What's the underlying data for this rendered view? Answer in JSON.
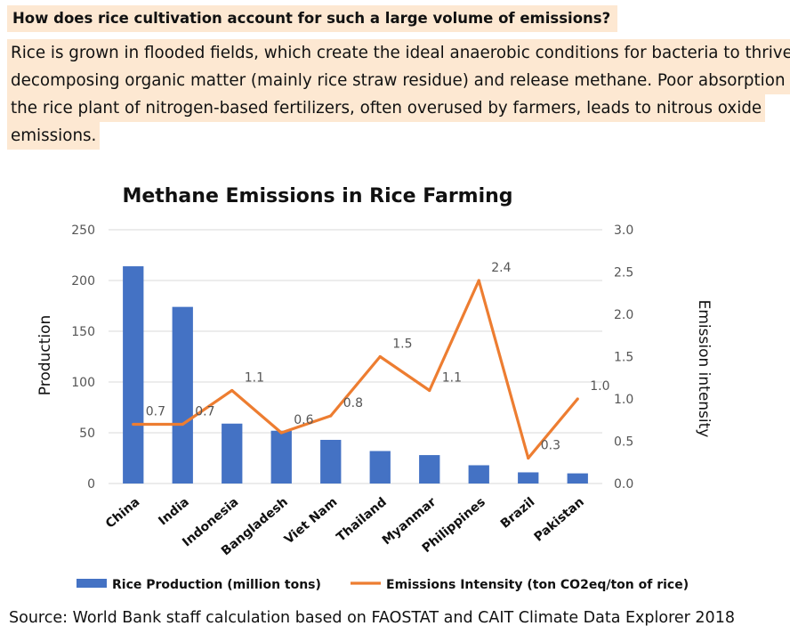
{
  "question": "How does rice cultivation account for such a large volume of emissions?",
  "answer_lines": [
    "Rice is grown in flooded fields, which create the ideal anaerobic conditions for bacteria to thrive on",
    "decomposing organic matter (mainly rice straw residue) and release methane. Poor absorption by",
    "the rice plant of nitrogen-based fertilizers, often overused by farmers, leads to nitrous oxide",
    "emissions."
  ],
  "source": "Source: World Bank staff calculation based on FAOSTAT and CAIT Climate Data Explorer 2018",
  "chart_data": {
    "type": "bar",
    "title": "Methane Emissions in Rice Farming",
    "ylabel": "Production",
    "y2label": "Emission intensity",
    "ylim": [
      0,
      250
    ],
    "y2lim": [
      0,
      3.0
    ],
    "yticks": [
      "0",
      "50",
      "100",
      "150",
      "200",
      "250"
    ],
    "y2ticks": [
      "0.0",
      "0.5",
      "1.0",
      "1.5",
      "2.0",
      "2.5",
      "3.0"
    ],
    "categories": [
      "China",
      "India",
      "Indonesia",
      "Bangladesh",
      "Viet Nam",
      "Thailand",
      "Myanmar",
      "Philippines",
      "Brazil",
      "Pakistan"
    ],
    "series": [
      {
        "name": "Rice Production (million tons)",
        "type": "bar",
        "axis": "left",
        "color": "#4472c4",
        "values": [
          214,
          174,
          59,
          52,
          43,
          32,
          28,
          18,
          11,
          10
        ]
      },
      {
        "name": "Emissions Intensity (ton CO2eq/ton of rice)",
        "type": "line",
        "axis": "right",
        "color": "#ed7d31",
        "values": [
          0.7,
          0.7,
          1.1,
          0.6,
          0.8,
          1.5,
          1.1,
          2.4,
          0.3,
          1.0
        ],
        "labels": [
          "0.7",
          "0.7",
          "1.1",
          "0.6",
          "0.8",
          "1.5",
          "1.1",
          "2.4",
          "0.3",
          "1.0"
        ]
      }
    ],
    "grid": true,
    "legend": "bottom"
  }
}
